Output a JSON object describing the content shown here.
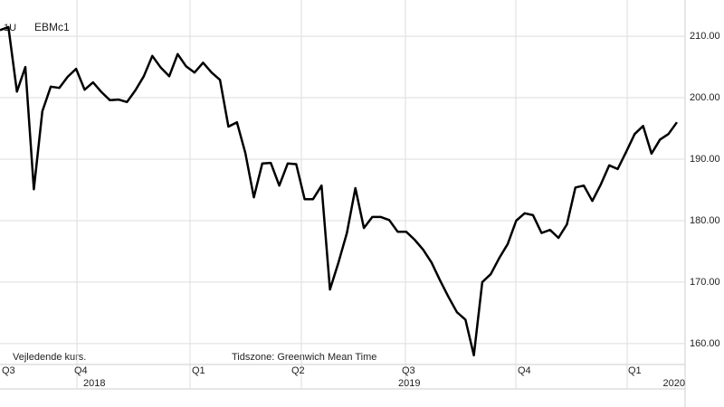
{
  "chart_data": {
    "type": "line",
    "ticker_prefix": "1U",
    "title": "EBMc1",
    "note_left": "Vejledende kurs.",
    "note_center": "Tidszone: Greenwich Mean Time",
    "quarters": [
      "Q3",
      "Q4",
      "Q1",
      "Q2",
      "Q3",
      "Q4",
      "Q1"
    ],
    "years": [
      "2018",
      "2019",
      "2020"
    ],
    "color": "#000000",
    "grid": true,
    "ylim": [
      156.6,
      215.9
    ],
    "yticks": [
      {
        "value": 160,
        "label": "160.00"
      },
      {
        "value": 170,
        "label": "170.00"
      },
      {
        "value": 180,
        "label": "180.00"
      },
      {
        "value": 190,
        "label": "190.00"
      },
      {
        "value": 200,
        "label": "200.00"
      },
      {
        "value": 210,
        "label": "210.00"
      }
    ],
    "values": [
      211.0,
      211.5,
      201.0,
      205.0,
      185.1,
      197.8,
      201.8,
      201.6,
      203.4,
      204.7,
      201.3,
      202.5,
      200.9,
      199.6,
      199.7,
      199.3,
      201.2,
      203.5,
      206.8,
      204.9,
      203.5,
      207.1,
      205.1,
      204.1,
      205.7,
      204.1,
      202.9,
      195.3,
      196.0,
      191.0,
      183.8,
      189.3,
      189.4,
      185.7,
      189.3,
      189.2,
      183.5,
      183.5,
      185.7,
      168.8,
      173.2,
      178.0,
      185.3,
      178.8,
      180.6,
      180.6,
      180.1,
      178.2,
      178.2,
      176.9,
      175.3,
      173.2,
      170.3,
      167.6,
      165.1,
      163.9,
      158.1,
      170.0,
      171.3,
      173.9,
      176.2,
      180.0,
      181.2,
      180.9,
      178.0,
      178.5,
      177.2,
      179.4,
      185.4,
      185.7,
      183.2,
      185.9,
      189.0,
      188.4,
      191.2,
      194.1,
      195.4,
      190.9,
      193.2,
      194.1,
      196.0
    ]
  }
}
